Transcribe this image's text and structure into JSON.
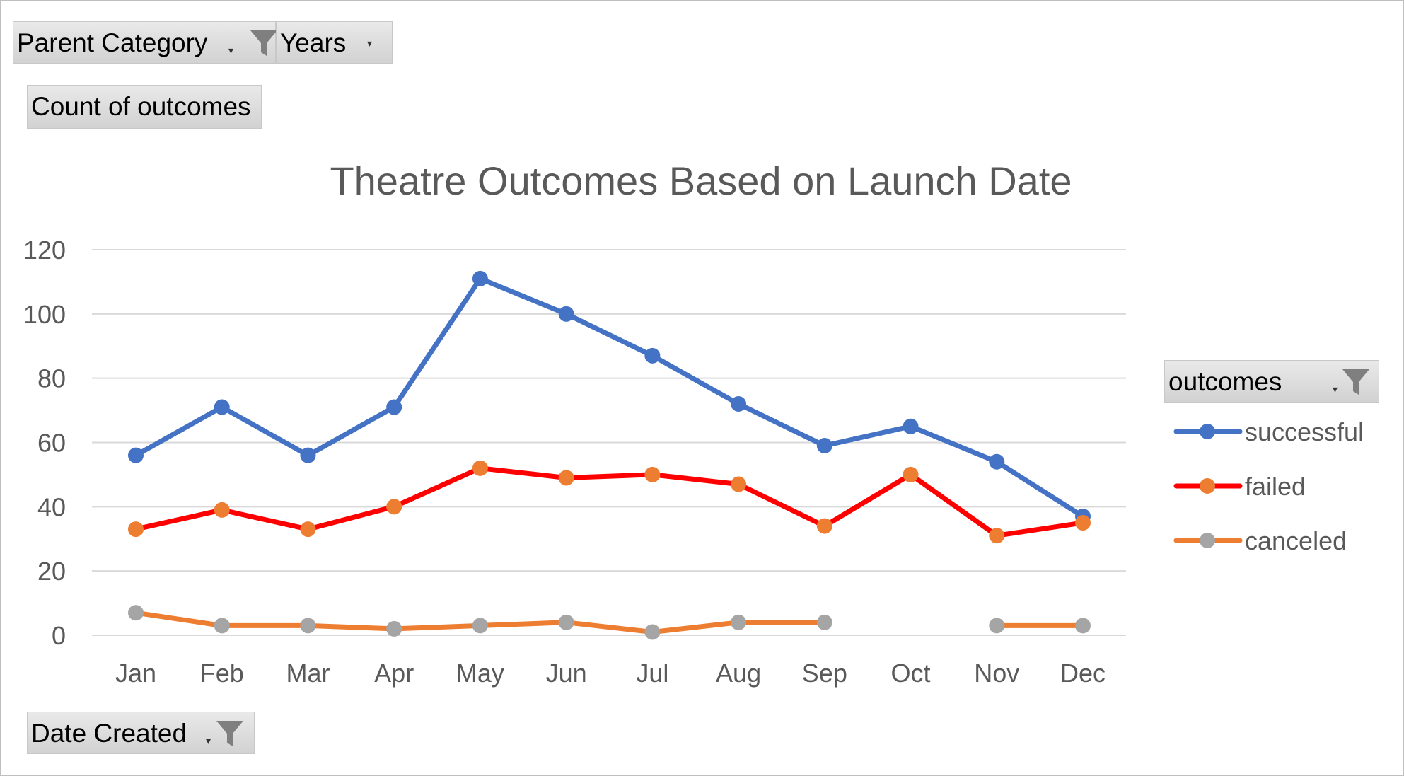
{
  "filters": {
    "parent_category": "Parent Category",
    "years": "Years",
    "values_field": "Count of outcomes",
    "legend_field": "outcomes",
    "axis_field": "Date Created"
  },
  "colors": {
    "successful": "#4472C4",
    "failed_line": "#FF0000",
    "failed_marker": "#ED7D31",
    "canceled_line": "#ED7D31",
    "canceled_marker": "#A5A5A5",
    "grid": "#d9d9d9",
    "text": "#595959"
  },
  "chart_data": {
    "type": "line",
    "title": "Theatre Outcomes Based on Launch Date",
    "xlabel": "",
    "ylabel": "",
    "ylim": [
      0,
      120
    ],
    "yticks": [
      0,
      20,
      40,
      60,
      80,
      100,
      120
    ],
    "grid": true,
    "legend_position": "right",
    "categories": [
      "Jan",
      "Feb",
      "Mar",
      "Apr",
      "May",
      "Jun",
      "Jul",
      "Aug",
      "Sep",
      "Oct",
      "Nov",
      "Dec"
    ],
    "series": [
      {
        "name": "successful",
        "values": [
          56,
          71,
          56,
          71,
          111,
          100,
          87,
          72,
          59,
          65,
          54,
          37
        ]
      },
      {
        "name": "failed",
        "values": [
          33,
          39,
          33,
          40,
          52,
          49,
          50,
          47,
          34,
          50,
          31,
          35
        ]
      },
      {
        "name": "canceled",
        "values": [
          7,
          3,
          3,
          2,
          3,
          4,
          1,
          4,
          4,
          null,
          3,
          3
        ]
      }
    ]
  }
}
